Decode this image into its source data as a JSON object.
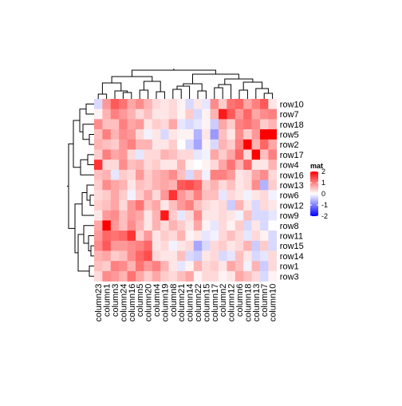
{
  "chart_data": {
    "type": "heatmap",
    "rows": [
      "row10",
      "row7",
      "row18",
      "row5",
      "row2",
      "row17",
      "row4",
      "row16",
      "row13",
      "row6",
      "row12",
      "row9",
      "row8",
      "row11",
      "row15",
      "row14",
      "row1",
      "row3"
    ],
    "columns": [
      "column23",
      "column1",
      "column3",
      "column24",
      "column16",
      "column5",
      "column20",
      "column4",
      "column19",
      "column8",
      "column21",
      "column14",
      "column22",
      "column15",
      "column17",
      "column2",
      "column12",
      "column6",
      "column18",
      "column13",
      "column7",
      "column10"
    ],
    "values": [
      [
        -0.3,
        0.8,
        1.3,
        1.1,
        0.7,
        0.9,
        0.6,
        0.3,
        0.2,
        0.3,
        0.1,
        -0.3,
        0.2,
        -0.2,
        0.9,
        0.4,
        1.1,
        1.2,
        0.7,
        1.0,
        1.3,
        0.2
      ],
      [
        0.1,
        0.6,
        1.0,
        0.8,
        0.6,
        0.3,
        0.5,
        0.2,
        0.2,
        0.3,
        0.1,
        0.4,
        -0.3,
        0.1,
        0.6,
        1.8,
        1.3,
        0.8,
        1.2,
        0.7,
        0.9,
        1.0
      ],
      [
        0.9,
        0.5,
        0.5,
        1.0,
        0.7,
        0.8,
        0.2,
        0.4,
        0.3,
        0.7,
        -0.2,
        -0.3,
        -0.2,
        0.1,
        -0.4,
        0.7,
        0.4,
        1.0,
        1.1,
        0.9,
        0.4,
        0.6
      ],
      [
        0.5,
        1.0,
        0.6,
        0.9,
        0.8,
        0.3,
        -0.1,
        0.2,
        -0.3,
        0.2,
        0.1,
        0.1,
        -0.6,
        0.2,
        -0.8,
        0.5,
        0.2,
        0.9,
        0.4,
        0.8,
        2.0,
        2.2
      ],
      [
        0.6,
        0.5,
        0.4,
        0.8,
        1.0,
        0.6,
        0.6,
        0.2,
        0.2,
        0.4,
        0.0,
        -0.3,
        -0.7,
        0.1,
        -0.3,
        0.6,
        0.4,
        1.0,
        2.1,
        0.6,
        1.2,
        0.7
      ],
      [
        0.4,
        1.0,
        0.7,
        0.8,
        0.3,
        -0.2,
        0.3,
        0.3,
        0.6,
        0.5,
        0.3,
        0.3,
        -0.2,
        -0.1,
        0.7,
        0.4,
        0.7,
        1.2,
        0.3,
        2.0,
        0.5,
        1.0
      ],
      [
        1.6,
        0.3,
        0.3,
        0.9,
        0.5,
        0.6,
        0.3,
        0.4,
        0.2,
        0.2,
        0.6,
        0.1,
        0.0,
        0.1,
        0.3,
        0.7,
        1.1,
        0.6,
        1.2,
        0.2,
        0.2,
        0.6
      ],
      [
        0.5,
        0.6,
        -0.2,
        0.4,
        0.3,
        0.8,
        0.4,
        0.6,
        0.7,
        0.9,
        0.5,
        -0.3,
        0.5,
        -0.1,
        1.0,
        1.0,
        0.8,
        0.2,
        0.3,
        0.7,
        0.9,
        0.3
      ],
      [
        0.4,
        0.9,
        0.7,
        0.6,
        0.2,
        0.5,
        0.4,
        0.6,
        0.7,
        0.6,
        1.3,
        1.4,
        1.2,
        0.4,
        0.6,
        0.3,
        0.5,
        0.2,
        0.3,
        0.9,
        -0.6,
        0.4
      ],
      [
        0.3,
        0.4,
        0.7,
        0.4,
        -0.1,
        0.4,
        0.7,
        0.3,
        0.8,
        1.6,
        0.8,
        0.6,
        1.0,
        0.5,
        0.5,
        -0.2,
        0.3,
        0.2,
        -0.1,
        0.2,
        0.3,
        -0.1
      ],
      [
        0.4,
        0.5,
        0.7,
        0.3,
        0.8,
        1.1,
        0.5,
        0.7,
        0.2,
        0.5,
        0.8,
        1.0,
        0.5,
        0.3,
        0.2,
        0.3,
        -0.4,
        0.6,
        0.2,
        -0.3,
        0.3,
        0.2
      ],
      [
        0.2,
        0.8,
        0.9,
        0.5,
        0.8,
        0.7,
        0.2,
        0.6,
        1.8,
        0.4,
        -0.2,
        0.3,
        0.9,
        0.2,
        0.2,
        0.3,
        0.2,
        -0.1,
        0.5,
        -0.3,
        -0.3,
        -0.2
      ],
      [
        0.7,
        2.1,
        0.8,
        0.5,
        0.9,
        0.6,
        0.2,
        0.6,
        0.3,
        0.6,
        0.4,
        0.2,
        0.7,
        0.1,
        -0.2,
        0.3,
        0.1,
        0.4,
        -0.3,
        0.2,
        -0.3,
        0.0
      ],
      [
        0.8,
        1.2,
        1.1,
        1.2,
        1.6,
        0.4,
        0.8,
        0.2,
        0.4,
        0.3,
        0.6,
        0.1,
        0.2,
        -0.2,
        -0.1,
        0.3,
        0.5,
        0.3,
        -0.2,
        0.3,
        0.1,
        -0.3
      ],
      [
        0.9,
        1.3,
        0.8,
        0.8,
        0.9,
        1.0,
        1.2,
        0.2,
        0.3,
        -0.1,
        0.2,
        0.3,
        -0.7,
        -0.3,
        0.3,
        0.4,
        0.2,
        0.3,
        0.6,
        -0.4,
        0.4,
        -0.3
      ],
      [
        0.6,
        0.7,
        0.4,
        0.5,
        0.9,
        1.2,
        1.4,
        0.3,
        0.2,
        0.2,
        0.5,
        -0.3,
        -0.4,
        0.2,
        0.3,
        -0.3,
        -0.2,
        0.5,
        0.2,
        -0.3,
        -0.2,
        0.3
      ],
      [
        0.5,
        0.4,
        1.0,
        0.9,
        0.6,
        1.1,
        0.8,
        1.0,
        0.6,
        0.2,
        -0.2,
        0.1,
        0.6,
        0.3,
        0.4,
        0.2,
        0.7,
        0.5,
        -0.1,
        0.6,
        -0.4,
        0.3
      ],
      [
        0.3,
        0.9,
        0.8,
        0.6,
        1.1,
        0.7,
        0.4,
        0.7,
        0.4,
        0.3,
        0.5,
        0.7,
        0.1,
        0.3,
        0.3,
        0.1,
        0.2,
        0.7,
        0.5,
        0.3,
        -0.3,
        0.1
      ]
    ],
    "legend": {
      "title": "mat",
      "ticks": [
        2,
        1,
        0,
        -1,
        -2
      ],
      "tick_labels": [
        "2",
        "1",
        "0",
        "-1",
        "-2"
      ],
      "colors": {
        "low": "#0000ff",
        "mid": "#ffffff",
        "high": "#ff0000"
      },
      "range": [
        -2,
        2
      ],
      "placement": "right"
    },
    "row_dendrogram": "left",
    "column_dendrogram": "top"
  }
}
